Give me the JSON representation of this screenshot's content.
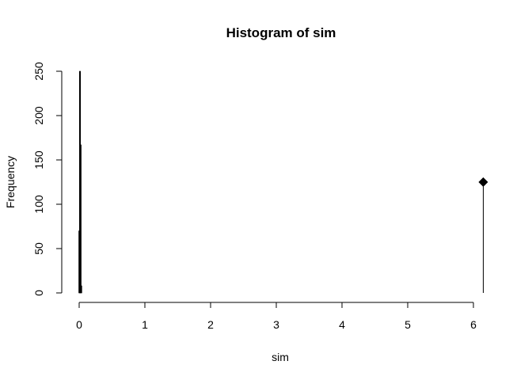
{
  "chart_data": {
    "type": "bar",
    "title": "Histogram of sim",
    "xlabel": "sim",
    "ylabel": "Frequency",
    "xlim": [
      0,
      6.15
    ],
    "ylim": [
      0,
      250
    ],
    "x_ticks": [
      "0",
      "1",
      "2",
      "3",
      "4",
      "5",
      "6"
    ],
    "y_ticks": [
      "0",
      "50",
      "100",
      "150",
      "200",
      "250"
    ],
    "bins": [
      {
        "x": 0.0,
        "value": 70
      },
      {
        "x": 0.01,
        "value": 250
      },
      {
        "x": 0.02,
        "value": 167
      },
      {
        "x": 0.03,
        "value": 8
      }
    ],
    "marker": {
      "x": 6.15,
      "value": 125,
      "shape": "diamond"
    },
    "color": "#000000",
    "grid": false
  }
}
